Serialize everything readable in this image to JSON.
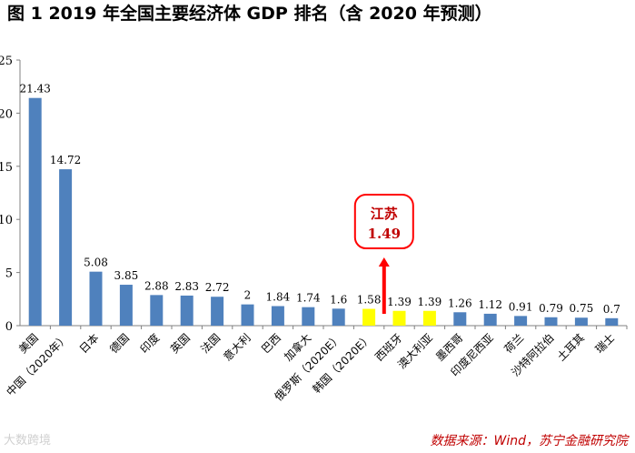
{
  "page_title": "图 1    2019 年全国主要经济体 GDP 排名（含 2020 年预测）",
  "source": "数据来源：Wind，苏宁金融研究院",
  "watermark": "大数跨境",
  "colors": {
    "bar": "#4f81bd",
    "highlight": "#ffff00",
    "callout": "#ff0000",
    "axis": "#808080"
  },
  "chart_data": {
    "type": "bar",
    "title": "2019 年全国主要经济体 GDP 排名（含 2020 年预测）",
    "xlabel": "",
    "ylabel": "",
    "ylim": [
      0,
      25
    ],
    "yticks": [
      0,
      5,
      10,
      15,
      20,
      25
    ],
    "categories": [
      "美国",
      "中国（2020年）",
      "日本",
      "德国",
      "印度",
      "英国",
      "法国",
      "意大利",
      "巴西",
      "加拿大",
      "俄罗斯（2020E）",
      "韩国（2020E）",
      "西班牙",
      "澳大利亚",
      "墨西哥",
      "印度尼西亚",
      "荷兰",
      "沙特阿拉伯",
      "土耳其",
      "瑞士"
    ],
    "values": [
      21.43,
      14.72,
      5.08,
      3.85,
      2.88,
      2.83,
      2.72,
      2,
      1.84,
      1.74,
      1.6,
      1.58,
      1.39,
      1.39,
      1.26,
      1.12,
      0.91,
      0.79,
      0.75,
      0.7
    ],
    "value_labels": [
      "21.43",
      "14.72",
      "5.08",
      "3.85",
      "2.88",
      "2.83",
      "2.72",
      "2",
      "1.84",
      "1.74",
      "1.6",
      "1.58",
      "1.39",
      "1.39",
      "1.26",
      "1.12",
      "0.91",
      "0.79",
      "0.75",
      "0.7"
    ],
    "highlighted_indices": [
      11,
      12,
      13
    ],
    "annotation": {
      "label": "江苏",
      "value": "1.49",
      "between_categories": [
        "韩国（2020E）",
        "西班牙"
      ]
    }
  }
}
